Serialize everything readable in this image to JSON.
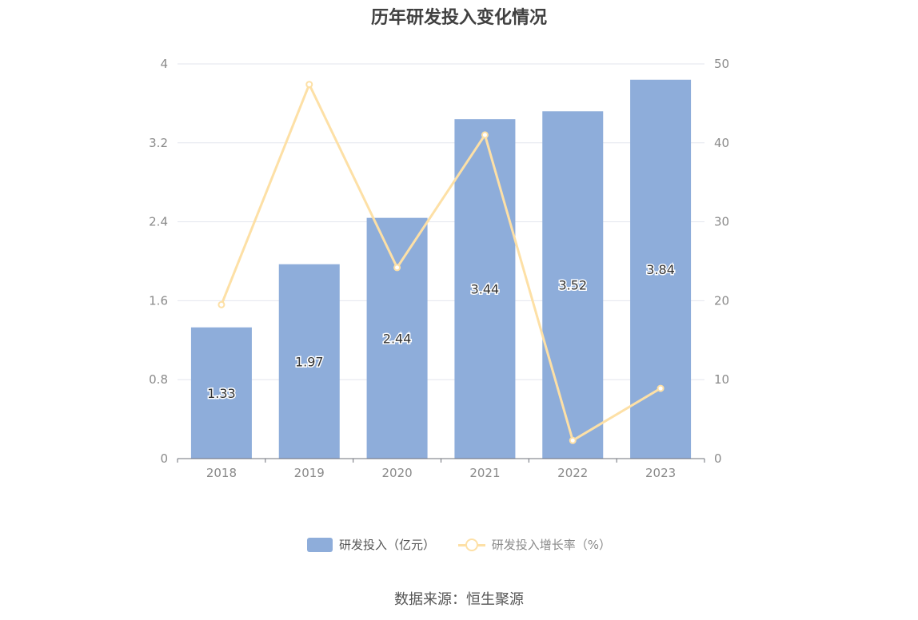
{
  "chart_data": {
    "type": "bar",
    "title": "历年研发投入变化情况",
    "categories": [
      "2018",
      "2019",
      "2020",
      "2021",
      "2022",
      "2023"
    ],
    "series": [
      {
        "name": "研发投入（亿元）",
        "type": "bar",
        "axis": "left",
        "color": "#8eadda",
        "values": [
          1.33,
          1.97,
          2.44,
          3.44,
          3.52,
          3.84
        ],
        "labels": [
          "1.33",
          "1.97",
          "2.44",
          "3.44",
          "3.52",
          "3.84"
        ]
      },
      {
        "name": "研发投入增长率（%）",
        "type": "line",
        "axis": "right",
        "color": "#fde0a6",
        "values": [
          19.5,
          47.4,
          24.2,
          41.0,
          2.3,
          8.9
        ]
      }
    ],
    "y_left": {
      "min": 0,
      "max": 4,
      "ticks": [
        "0",
        "0.8",
        "1.6",
        "2.4",
        "3.2",
        "4"
      ]
    },
    "y_right": {
      "min": 0,
      "max": 50,
      "ticks": [
        "0",
        "10",
        "20",
        "30",
        "40",
        "50"
      ]
    },
    "grid": true,
    "legend_position": "bottom"
  },
  "source_text": "数据来源：恒生聚源"
}
